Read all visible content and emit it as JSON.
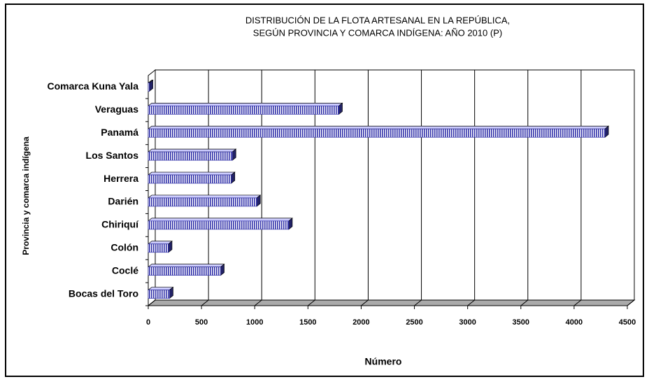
{
  "chart_data": {
    "type": "bar",
    "orientation": "horizontal",
    "title": [
      "DISTRIBUCIÓN DE LA FLOTA ARTESANAL EN LA REPÚBLICA,",
      "SEGÚN PROVINCIA Y COMARCA INDÍGENA:  AÑO 2010 (P)"
    ],
    "x_label": "Número",
    "y_label": "Provincia y comarca indígena",
    "categories": [
      "Bocas del Toro",
      "Coclé",
      "Colón",
      "Chiriquí",
      "Darién",
      "Herrera",
      "Los Santos",
      "Panamá",
      "Veraguas",
      "Comarca Kuna Yala"
    ],
    "values": [
      200,
      680,
      190,
      1320,
      1020,
      780,
      790,
      4290,
      1790,
      10
    ],
    "color": "#3333aa",
    "xlim": [
      0,
      4500
    ],
    "xticks": [
      0,
      500,
      1000,
      1500,
      2000,
      2500,
      3000,
      3500,
      4000,
      4500
    ],
    "grid": true
  }
}
